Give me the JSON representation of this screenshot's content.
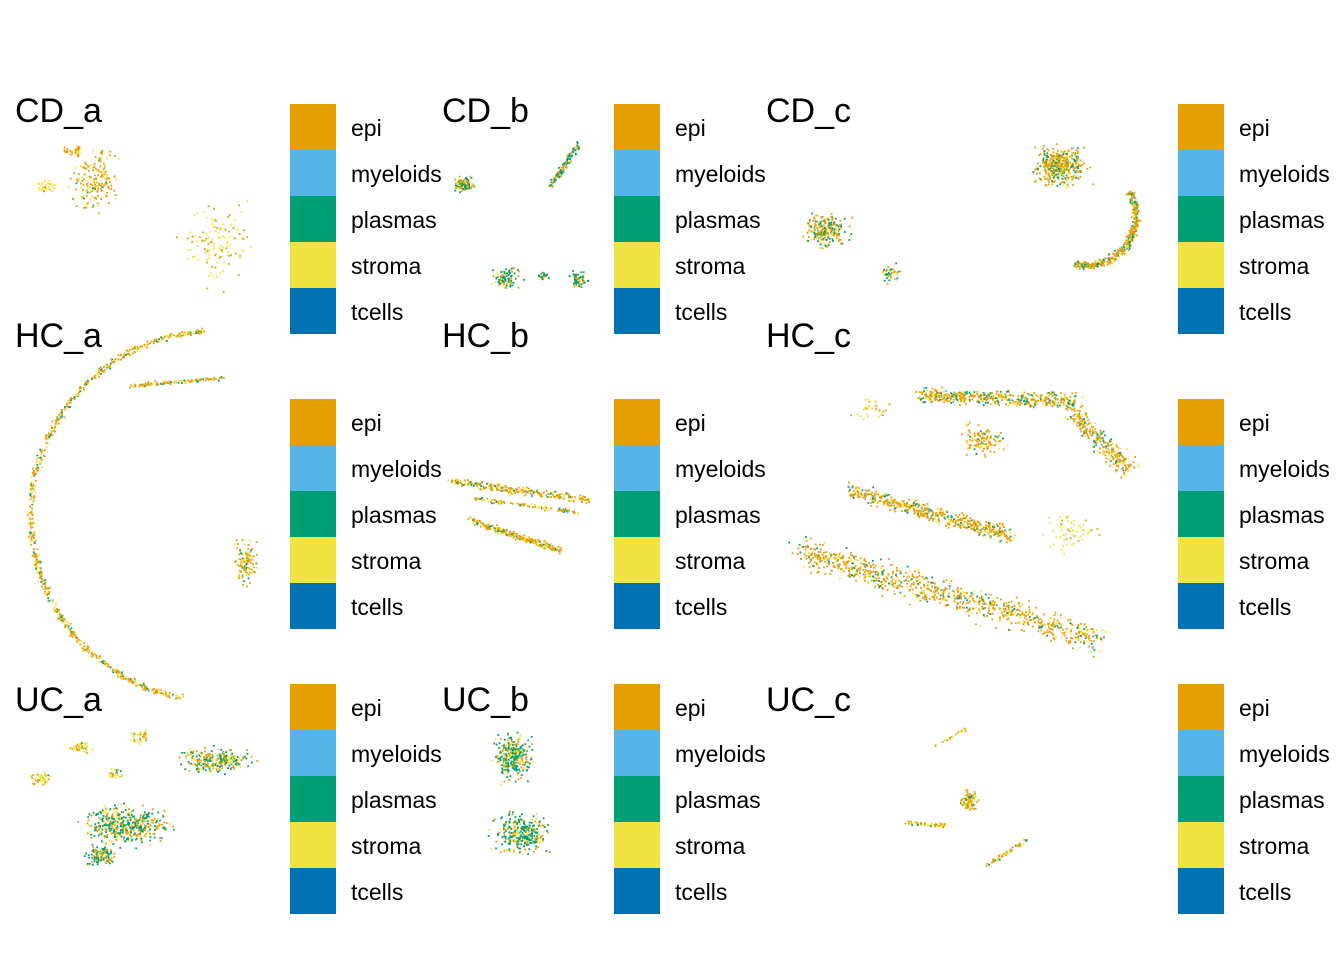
{
  "chart_data": {
    "type": "scatter",
    "description_free": true,
    "categories": [
      "epi",
      "myeloids",
      "plasmas",
      "stroma",
      "tcells"
    ],
    "colors": {
      "epi": "#E69F00",
      "myeloids": "#56B4E9",
      "plasmas": "#009E73",
      "stroma": "#F0E442",
      "tcells": "#0072B2"
    },
    "legend_position": "right",
    "grid": false,
    "axes": false,
    "panels": [
      {
        "title": "CD_a",
        "legend": [
          "epi",
          "myeloids",
          "plasmas",
          "stroma",
          "tcells"
        ]
      },
      {
        "title": "CD_b",
        "legend": [
          "epi",
          "myeloids",
          "plasmas",
          "stroma",
          "tcells"
        ]
      },
      {
        "title": "CD_c",
        "legend": [
          "epi",
          "myeloids",
          "plasmas",
          "stroma",
          "tcells"
        ]
      },
      {
        "title": "HC_a",
        "legend": [
          "epi",
          "myeloids",
          "plasmas",
          "stroma",
          "tcells"
        ]
      },
      {
        "title": "HC_b",
        "legend": [
          "epi",
          "myeloids",
          "plasmas",
          "stroma",
          "tcells"
        ]
      },
      {
        "title": "HC_c",
        "legend": [
          "epi",
          "myeloids",
          "plasmas",
          "stroma",
          "tcells"
        ]
      },
      {
        "title": "UC_a",
        "legend": [
          "epi",
          "myeloids",
          "plasmas",
          "stroma",
          "tcells"
        ]
      },
      {
        "title": "UC_b",
        "legend": [
          "epi",
          "myeloids",
          "plasmas",
          "stroma",
          "tcells"
        ]
      },
      {
        "title": "UC_c",
        "legend": [
          "epi",
          "myeloids",
          "plasmas",
          "stroma",
          "tcells"
        ]
      }
    ]
  }
}
